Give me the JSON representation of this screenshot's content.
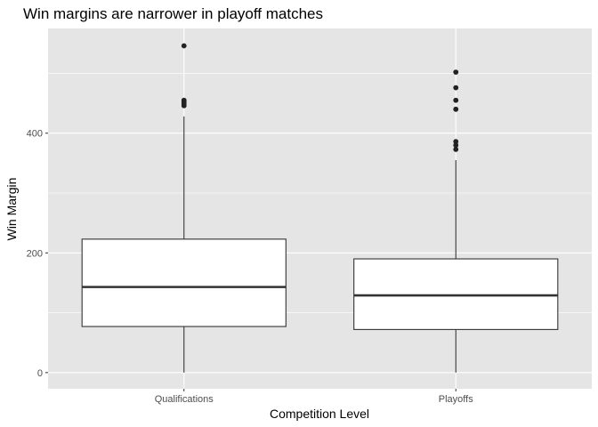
{
  "chart_data": {
    "type": "boxplot",
    "title": "Win margins are narrower in playoff matches",
    "xlabel": "Competition Level",
    "ylabel": "Win Margin",
    "categories": [
      "Qualifications",
      "Playoffs"
    ],
    "ylim": [
      -27,
      575
    ],
    "yticks": [
      0,
      200,
      400
    ],
    "grid": true,
    "boxes": [
      {
        "category": "Qualifications",
        "min": 0,
        "q1": 77,
        "median": 143,
        "q3": 223,
        "whisker_high": 428,
        "outliers": [
          446,
          449,
          452,
          455,
          546
        ]
      },
      {
        "category": "Playoffs",
        "min": 0,
        "q1": 72,
        "median": 129,
        "q3": 190,
        "whisker_high": 355,
        "outliers": [
          373,
          380,
          386,
          440,
          455,
          476,
          502
        ]
      }
    ],
    "colors": {
      "panel": "#e5e5e5",
      "grid": "#ffffff",
      "box_fill": "#ffffff",
      "box_line": "#333333",
      "outlier": "#222222"
    }
  }
}
